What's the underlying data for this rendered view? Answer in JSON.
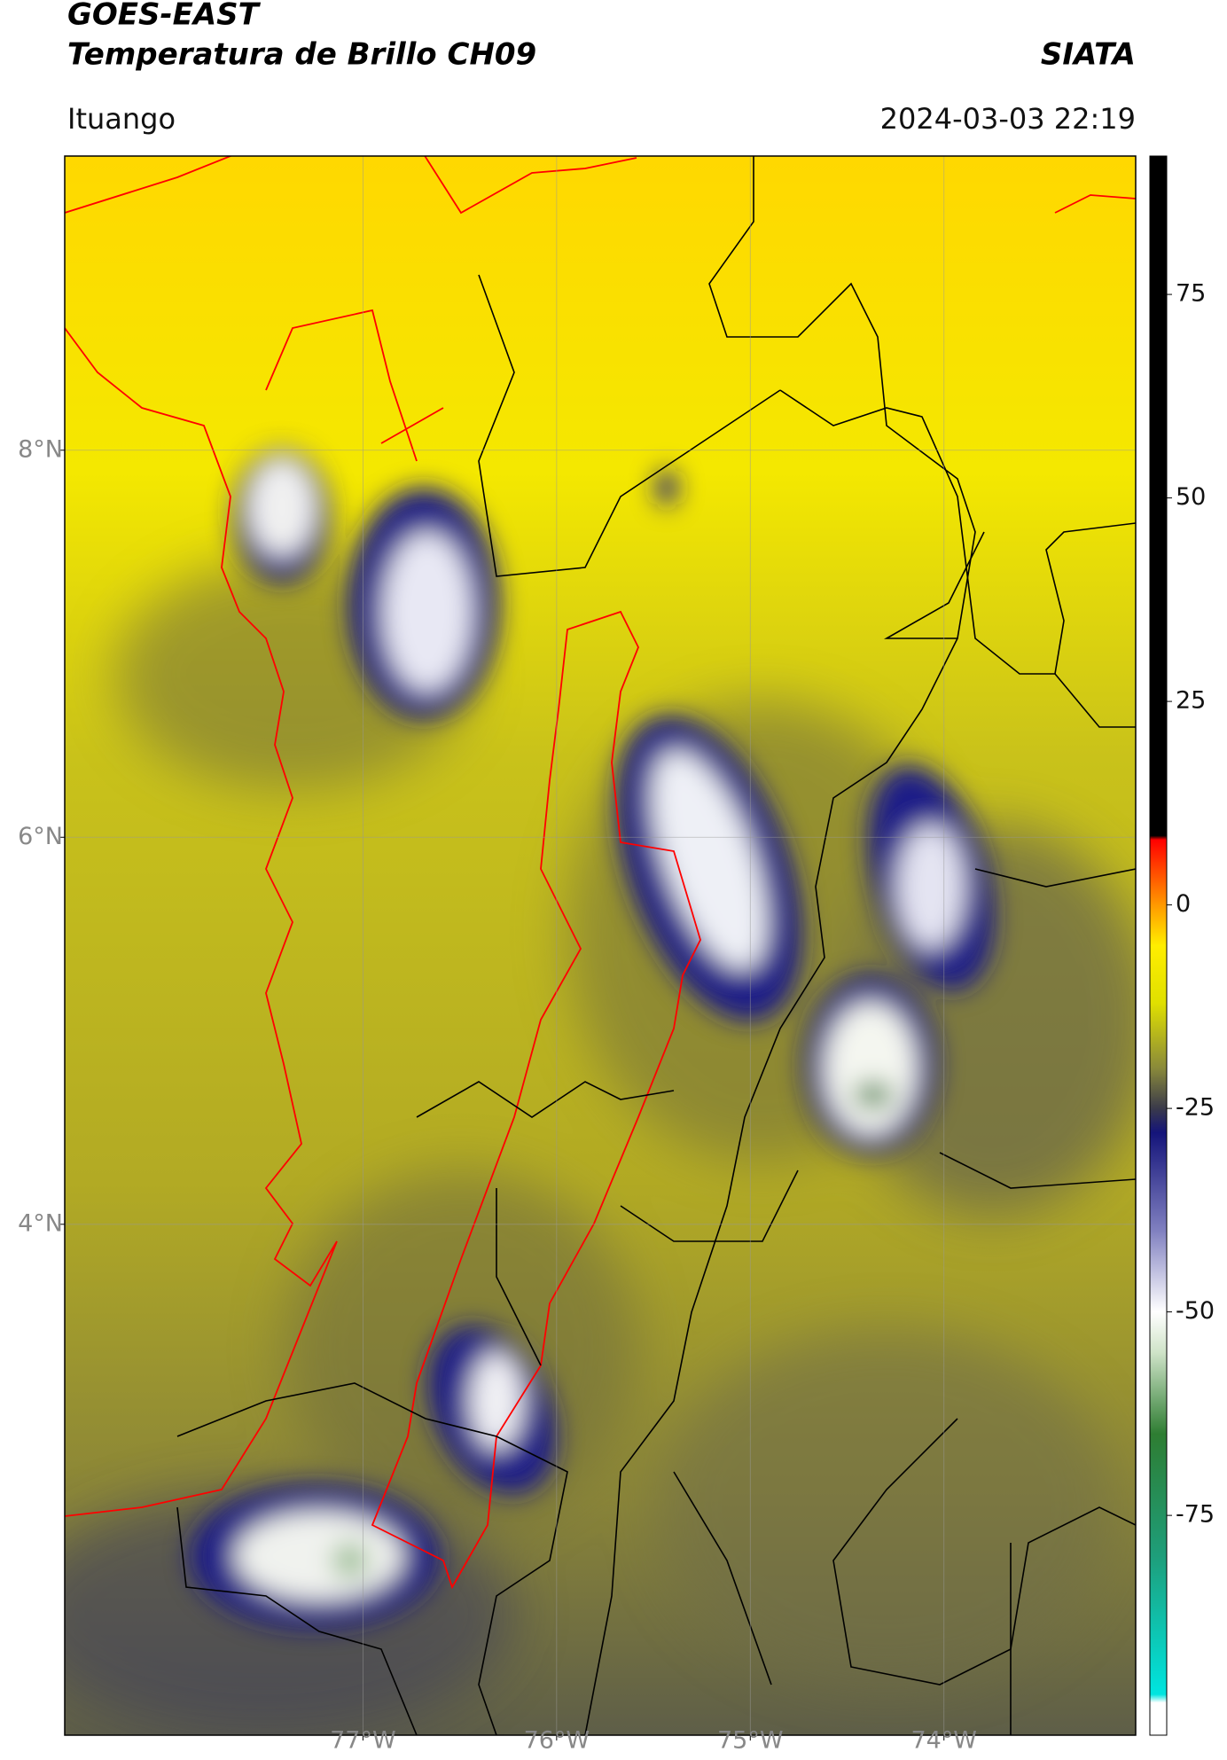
{
  "header": {
    "title": "GOES-EAST",
    "subtitle": "Temperatura de Brillo CH09",
    "source": "SIATA",
    "location": "Ituango",
    "datetime": "2024-03-03 22:19"
  },
  "map": {
    "xlim": [
      -78.54,
      -73.01
    ],
    "ylim": [
      1.36,
      9.52
    ],
    "xticks": [
      {
        "value": -77,
        "label": "77°W"
      },
      {
        "value": -76,
        "label": "76°W"
      },
      {
        "value": -75,
        "label": "75°W"
      },
      {
        "value": -74,
        "label": "74°W"
      }
    ],
    "yticks": [
      {
        "value": 8,
        "label": "8°N"
      },
      {
        "value": 6,
        "label": "6°N"
      },
      {
        "value": 4,
        "label": "4°N"
      }
    ],
    "grid": true
  },
  "colorbar": {
    "clim": [
      -102,
      92
    ],
    "ticks": [
      75,
      50,
      25,
      0,
      -25,
      -50,
      -75
    ],
    "stops": [
      {
        "value": -102,
        "color": "#ffffff"
      },
      {
        "value": -98,
        "color": "#ffffff"
      },
      {
        "value": -97,
        "color": "#00e5e0"
      },
      {
        "value": -80,
        "color": "#1e9e7a"
      },
      {
        "value": -65,
        "color": "#2e7d32"
      },
      {
        "value": -55,
        "color": "#cfe3c8"
      },
      {
        "value": -50,
        "color": "#ffffff"
      },
      {
        "value": -40,
        "color": "#8080c0"
      },
      {
        "value": -28,
        "color": "#14147a"
      },
      {
        "value": -25,
        "color": "#3a3a4a"
      },
      {
        "value": -20,
        "color": "#8a8a3a"
      },
      {
        "value": -12,
        "color": "#e0e000"
      },
      {
        "value": -5,
        "color": "#ffee00"
      },
      {
        "value": 0,
        "color": "#ff9900"
      },
      {
        "value": 8,
        "color": "#ff0000"
      },
      {
        "value": 8.5,
        "color": "#000000"
      },
      {
        "value": 92,
        "color": "#000000"
      }
    ]
  }
}
